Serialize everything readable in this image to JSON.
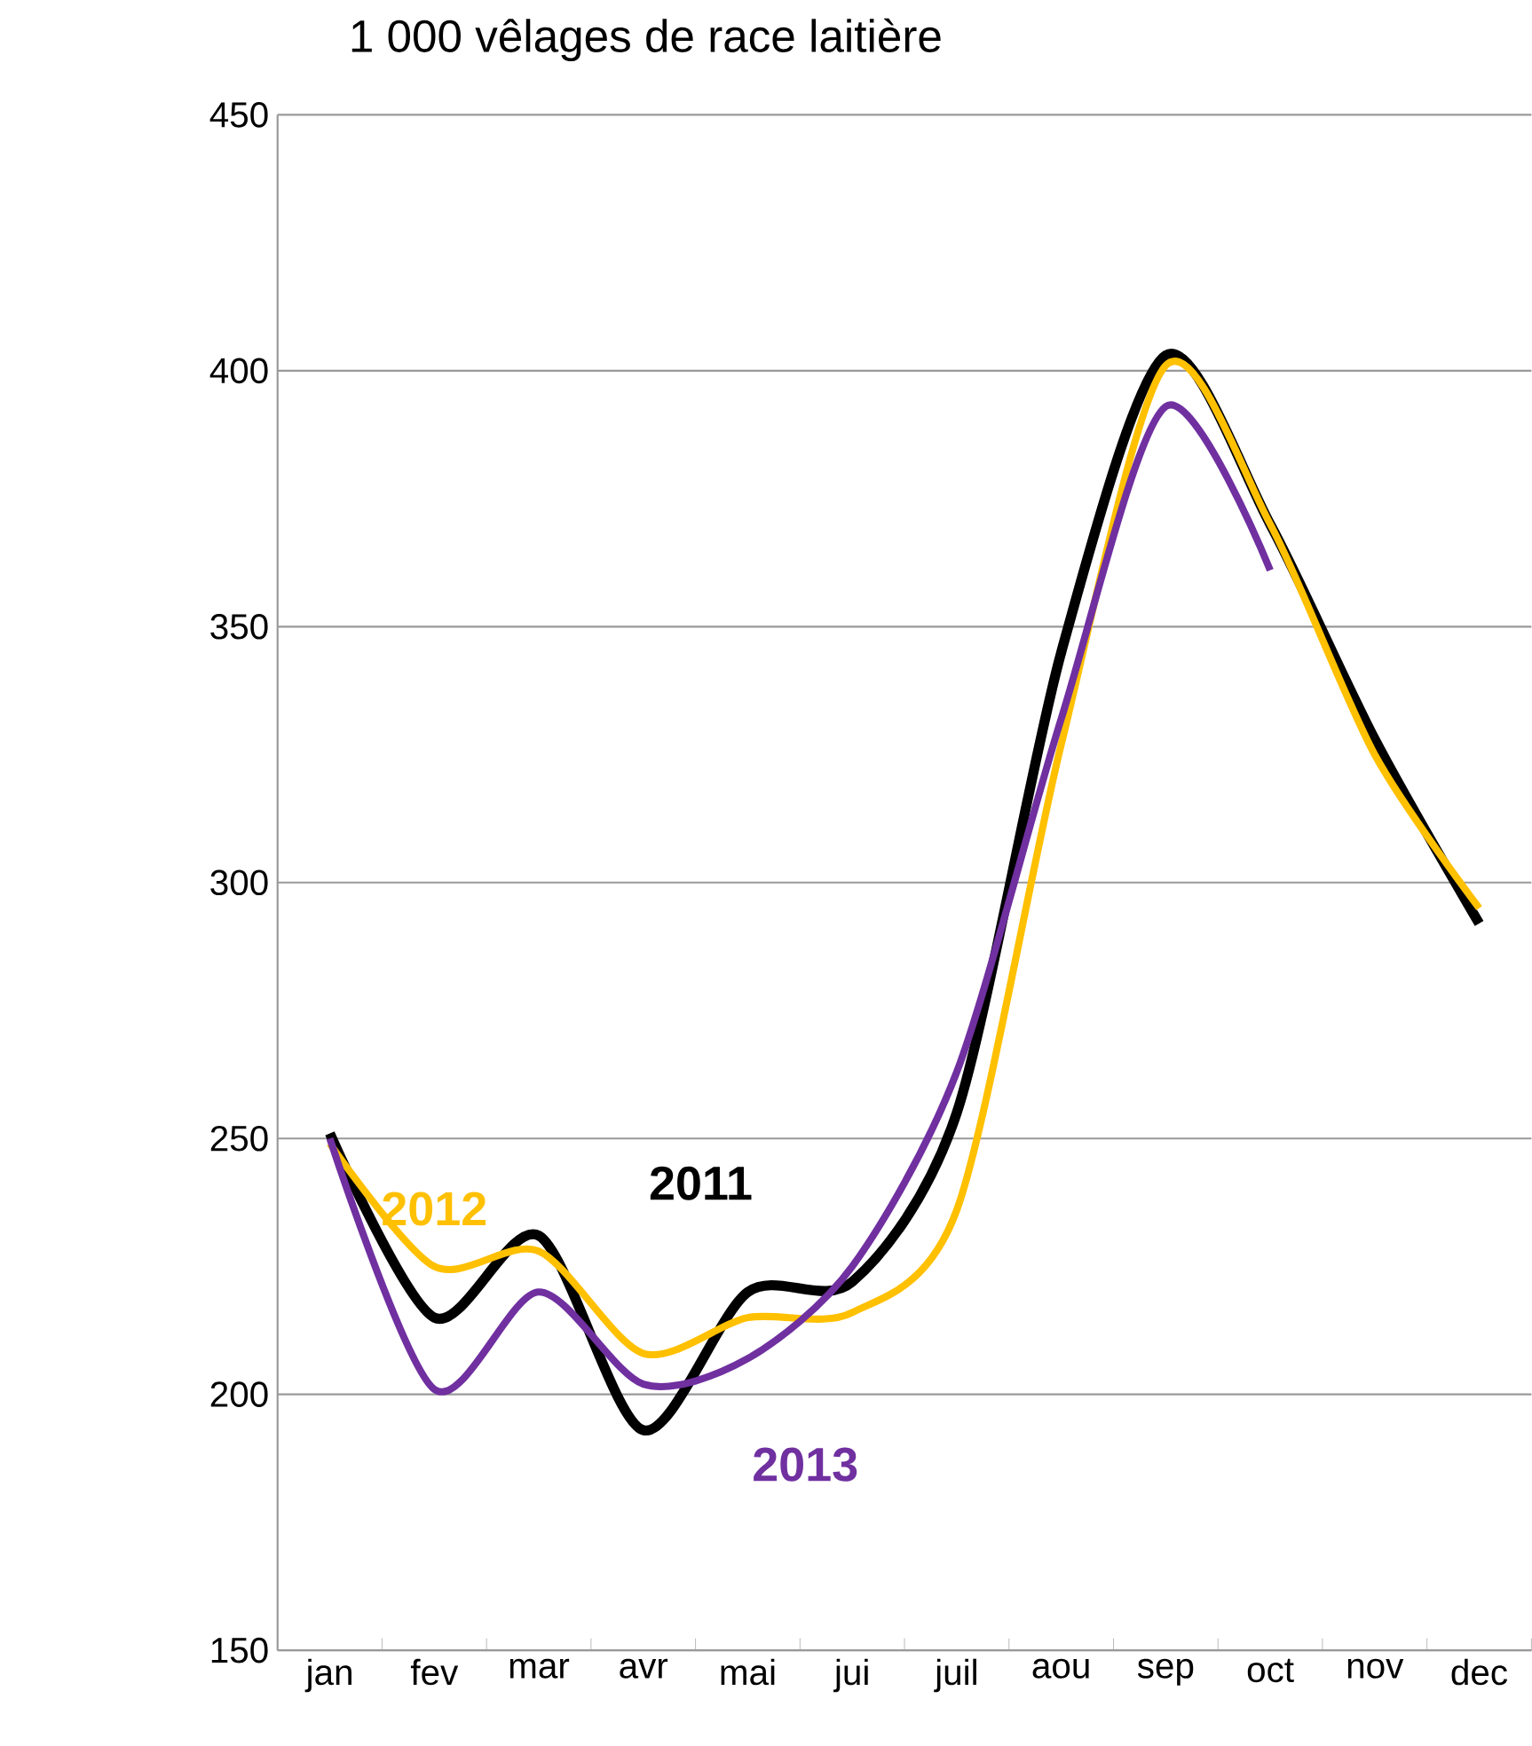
{
  "chart_data": {
    "type": "line",
    "title": "1 000 vêlages de race laitière",
    "categories": [
      "jan",
      "fev",
      "mar",
      "avr",
      "mai",
      "jui",
      "juil",
      "aou",
      "sep",
      "oct",
      "nov",
      "dec"
    ],
    "series": [
      {
        "name": "2011",
        "color": "#000000",
        "values": [
          251,
          215,
          231,
          193,
          220,
          222,
          255,
          345,
          403,
          370,
          328,
          292
        ]
      },
      {
        "name": "2012",
        "color": "#ffc000",
        "values": [
          249,
          225,
          228,
          208,
          215,
          216,
          236,
          327,
          401,
          370,
          325,
          295
        ]
      },
      {
        "name": "2013",
        "color": "#7030a0",
        "values": [
          250,
          201,
          220,
          202,
          207,
          225,
          263,
          332,
          393,
          361,
          null,
          null
        ]
      }
    ],
    "ylim": [
      150,
      450
    ],
    "yticks": [
      150,
      200,
      250,
      300,
      350,
      400,
      450
    ],
    "grid": "y",
    "legend": false,
    "marker": "none",
    "line_style": "solid"
  }
}
